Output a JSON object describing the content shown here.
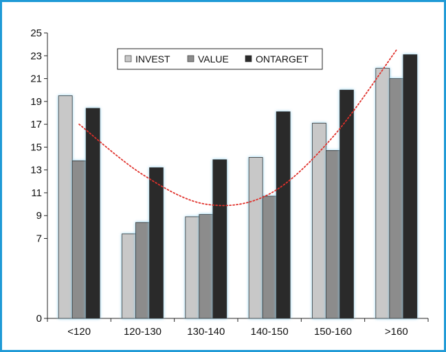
{
  "chart_data": {
    "type": "bar",
    "categories": [
      "<120",
      "120-130",
      "130-140",
      "140-150",
      "150-160",
      ">160"
    ],
    "series": [
      {
        "name": "INVEST",
        "values": [
          19.5,
          7.4,
          8.9,
          14.1,
          17.1,
          21.9
        ]
      },
      {
        "name": "VALUE",
        "values": [
          13.8,
          8.4,
          9.1,
          10.7,
          14.7,
          21.0
        ]
      },
      {
        "name": "ONTARGET",
        "values": [
          18.4,
          13.2,
          13.9,
          18.1,
          20.0,
          23.1
        ]
      }
    ],
    "trendline": {
      "style": "dotted",
      "type": "polynomial",
      "values": [
        17.0,
        12.6,
        10.0,
        10.9,
        15.9,
        23.5
      ]
    },
    "y_ticks": [
      "0",
      "7",
      "9",
      "11",
      "13",
      "15",
      "17",
      "19",
      "21",
      "23",
      "25"
    ],
    "ylim": [
      0,
      25
    ],
    "title": "",
    "xlabel": "",
    "ylabel": "",
    "legend_position": "top-center",
    "grid": false
  },
  "colors": {
    "invest": "#c8c8c8",
    "value": "#8c8c8c",
    "ontarget": "#2b2b2b",
    "trendline": "#e0302a",
    "frame": "#1f9ad6"
  }
}
